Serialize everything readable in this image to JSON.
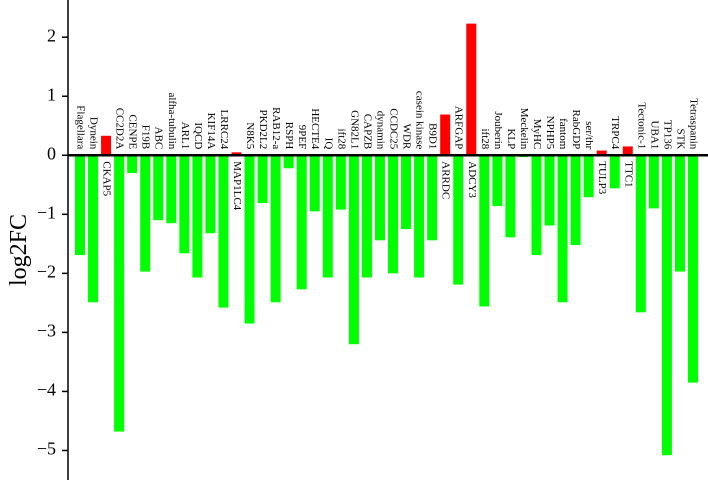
{
  "chart_data": {
    "type": "bar",
    "ylabel": "log2FC",
    "categories": [
      "Flagellara",
      "Dynein",
      "CKAP5",
      "CC2D2A",
      "CENPE",
      "F19B",
      "ABC",
      "alfha-tubulin",
      "ARL1",
      "IQCD",
      "KIF14A",
      "LRRC24",
      "MAP1LC4",
      "N8K5",
      "PKD2L2",
      "RAB12-a",
      "RSPH",
      "9PEF",
      "HECTE4",
      "IQ",
      "ift28",
      "GN82L1",
      "CAPZB",
      "dynamin",
      "CCDC25",
      "WDR",
      "casein kinase",
      "B9D1",
      "ARRDC",
      "ARFGAP",
      "ADCY3",
      "ift28",
      "Jouberin",
      "KLP",
      "Meckelin",
      "MyHC",
      "NPHP5",
      "fantom",
      "RabGDP",
      "ser/thr",
      "TULP3",
      "TRPC4",
      "TTC1",
      "Tectonic-1",
      "UBA1",
      "TP136",
      "STK",
      "Tetraspanin"
    ],
    "values": [
      -1.69,
      -2.49,
      0.33,
      -4.68,
      -0.3,
      -1.97,
      -1.1,
      -1.15,
      -1.66,
      -2.07,
      -1.32,
      -2.58,
      0.05,
      -2.85,
      -0.81,
      -2.49,
      -0.22,
      -2.27,
      -0.95,
      -2.07,
      -0.92,
      -3.2,
      -2.07,
      -1.44,
      -2.0,
      -1.25,
      -2.07,
      -1.44,
      0.69,
      -2.19,
      2.23,
      -2.56,
      -0.86,
      -1.39,
      -0.03,
      -1.69,
      -1.19,
      -2.49,
      -1.52,
      -0.71,
      0.08,
      -0.56,
      0.15,
      -2.66,
      -0.9,
      -5.08,
      -1.97,
      -3.85
    ],
    "positive_color": "#ff0000",
    "negative_color": "#00ff00",
    "ylim": [
      -5.5,
      2.63
    ],
    "yticks": [
      {
        "value": -5,
        "label": "−5"
      },
      {
        "value": -4,
        "label": "−4"
      },
      {
        "value": -3,
        "label": "−3"
      },
      {
        "value": -2,
        "label": "−2"
      },
      {
        "value": -1,
        "label": "−1"
      },
      0,
      1,
      2
    ],
    "grid": false
  }
}
